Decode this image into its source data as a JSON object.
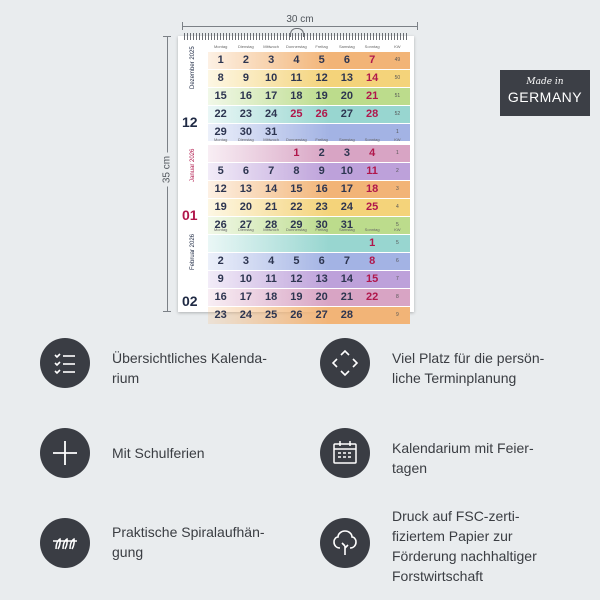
{
  "dimensions": {
    "width_label": "30 cm",
    "height_label": "35 cm"
  },
  "badge": {
    "line1": "Made in",
    "line2": "GERMANY"
  },
  "calendar": {
    "day_headers": [
      "Montag",
      "Dienstag",
      "Mittwoch",
      "Donnerstag",
      "Freitag",
      "Samstag",
      "Sonntag",
      "KW"
    ],
    "months": [
      {
        "name": "Dezember 2025",
        "number": "12",
        "number_color": "#1f2a44",
        "rows": [
          {
            "cells": [
              "1",
              "2",
              "3",
              "4",
              "5",
              "6",
              "7"
            ],
            "kw": "49",
            "red": [
              6
            ],
            "color": "orange"
          },
          {
            "cells": [
              "8",
              "9",
              "10",
              "11",
              "12",
              "13",
              "14"
            ],
            "kw": "50",
            "red": [
              6
            ],
            "color": "yellow"
          },
          {
            "cells": [
              "15",
              "16",
              "17",
              "18",
              "19",
              "20",
              "21"
            ],
            "kw": "51",
            "red": [
              6
            ],
            "color": "green"
          },
          {
            "cells": [
              "22",
              "23",
              "24",
              "25",
              "26",
              "27",
              "28"
            ],
            "kw": "52",
            "red": [
              3,
              4,
              6
            ],
            "color": "teal"
          },
          {
            "cells": [
              "29",
              "30",
              "31",
              "",
              "",
              "",
              ""
            ],
            "kw": "1",
            "red": [],
            "color": "blue"
          }
        ]
      },
      {
        "name": "Januar 2026",
        "number": "01",
        "number_color": "#b0174b",
        "rows": [
          {
            "cells": [
              "",
              "",
              "",
              "1",
              "2",
              "3",
              "4"
            ],
            "kw": "1",
            "red": [
              3,
              6
            ],
            "color": "pink"
          },
          {
            "cells": [
              "5",
              "6",
              "7",
              "8",
              "9",
              "10",
              "11"
            ],
            "kw": "2",
            "red": [
              6
            ],
            "color": "purple"
          },
          {
            "cells": [
              "12",
              "13",
              "14",
              "15",
              "16",
              "17",
              "18"
            ],
            "kw": "3",
            "red": [
              6
            ],
            "color": "orange"
          },
          {
            "cells": [
              "19",
              "20",
              "21",
              "22",
              "23",
              "24",
              "25"
            ],
            "kw": "4",
            "red": [
              6
            ],
            "color": "yellow"
          },
          {
            "cells": [
              "26",
              "27",
              "28",
              "29",
              "30",
              "31",
              ""
            ],
            "kw": "5",
            "red": [],
            "color": "green"
          }
        ]
      },
      {
        "name": "Februar 2026",
        "number": "02",
        "number_color": "#1f2a44",
        "rows": [
          {
            "cells": [
              "",
              "",
              "",
              "",
              "",
              "",
              "1"
            ],
            "kw": "5",
            "red": [
              6
            ],
            "color": "teal"
          },
          {
            "cells": [
              "2",
              "3",
              "4",
              "5",
              "6",
              "7",
              "8"
            ],
            "kw": "6",
            "red": [
              6
            ],
            "color": "blue"
          },
          {
            "cells": [
              "9",
              "10",
              "11",
              "12",
              "13",
              "14",
              "15"
            ],
            "kw": "7",
            "red": [
              6
            ],
            "color": "purple"
          },
          {
            "cells": [
              "16",
              "17",
              "18",
              "19",
              "20",
              "21",
              "22"
            ],
            "kw": "8",
            "red": [
              6
            ],
            "color": "pink"
          },
          {
            "cells": [
              "23",
              "24",
              "25",
              "26",
              "27",
              "28",
              ""
            ],
            "kw": "9",
            "red": [],
            "color": "orange"
          }
        ]
      }
    ]
  },
  "features": [
    {
      "icon": "checklist-icon",
      "lines": [
        "Übersichtliches Kalenda-",
        "rium"
      ]
    },
    {
      "icon": "expand-arrows-icon",
      "lines": [
        "Viel Platz für die persön-",
        "liche Terminplanung"
      ]
    },
    {
      "icon": "plus-icon",
      "lines": [
        "Mit Schulferien"
      ]
    },
    {
      "icon": "calendar-icon",
      "lines": [
        "Kalendarium mit Feier-",
        "tagen"
      ]
    },
    {
      "icon": "spiral-icon",
      "lines": [
        "Praktische Spiralaufhän-",
        "gung"
      ]
    },
    {
      "icon": "tree-icon",
      "lines": [
        "Druck auf FSC-zerti-",
        "fiziertem Papier zur",
        "Förderung nachhaltiger",
        "Forstwirtschaft"
      ]
    }
  ]
}
